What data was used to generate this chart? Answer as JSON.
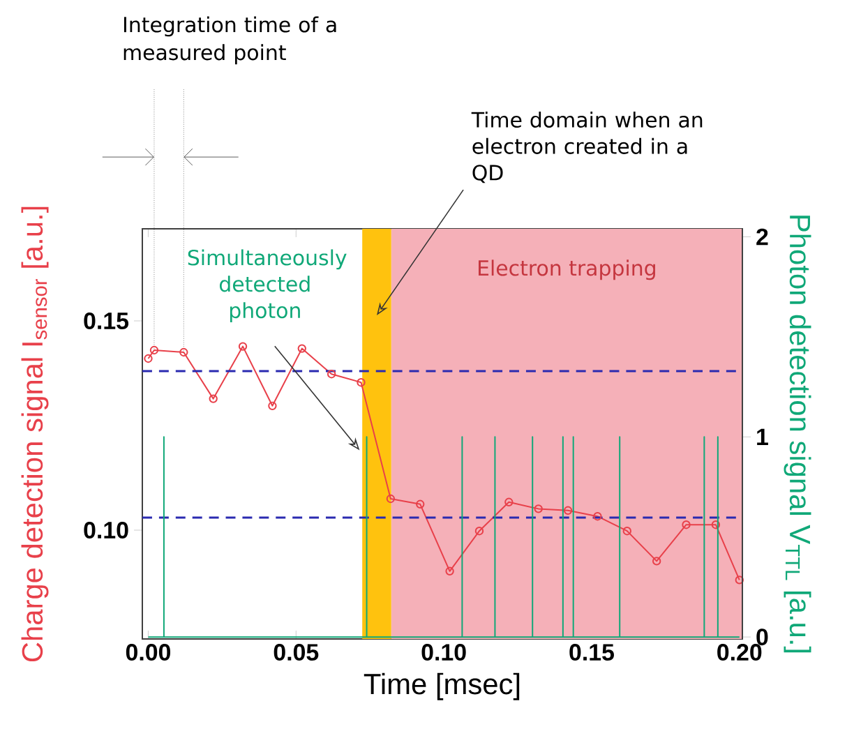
{
  "chart_data": {
    "type": "line",
    "xlabel": "Time [msec]",
    "ylabel": "Charge detection signal I$_{sensor}$ [a.u.]",
    "y2label": "Photon detection signal V$_{TTL}$ [a.u.]",
    "xlim": [
      -0.002,
      0.201
    ],
    "ylim": [
      0.074,
      0.172
    ],
    "y2lim": [
      -0.01,
      2.04
    ],
    "xticks": [
      {
        "value": 0,
        "label": "0.00"
      },
      0.05,
      {
        "value": 0.1,
        "label": "0.10"
      },
      0.15,
      {
        "value": 0.2,
        "label": "0.20"
      }
    ],
    "yticks": [
      {
        "value": 0.1,
        "label": "0.10"
      },
      0.15
    ],
    "y2ticks": [
      0,
      1,
      2
    ],
    "marker": "circle",
    "line_style": "solid",
    "grid": false,
    "series": [
      {
        "color": "#e8404a",
        "x": [
          0.0,
          0.002,
          0.012,
          0.022,
          0.032,
          0.042,
          0.052,
          0.062,
          0.072,
          0.082,
          0.092,
          0.102,
          0.112,
          0.122,
          0.132,
          0.142,
          0.152,
          0.162,
          0.172,
          0.182,
          0.192,
          0.2
        ],
        "values": [
          0.141,
          0.143,
          0.1425,
          0.1314,
          0.1439,
          0.1297,
          0.1434,
          0.1373,
          0.1353,
          0.1075,
          0.1062,
          0.0902,
          0.0998,
          0.1067,
          0.1051,
          0.1047,
          0.1033,
          0.0998,
          0.0926,
          0.1013,
          0.1013,
          0.0881
        ]
      },
      {
        "color": "#10a878",
        "axis": "y2",
        "marker": "none",
        "x": [
          0.0,
          0.0053,
          0.0053,
          0.0053,
          0.0739,
          0.0739,
          0.0739,
          0.1062,
          0.1062,
          0.1062,
          0.1173,
          0.1173,
          0.1173,
          0.13,
          0.13,
          0.13,
          0.1403,
          0.1403,
          0.1403,
          0.1438,
          0.1438,
          0.1438,
          0.1595,
          0.1595,
          0.1595,
          0.1881,
          0.1881,
          0.1881,
          0.1927,
          0.1927,
          0.1927,
          0.2
        ],
        "values": [
          0,
          0,
          1,
          0,
          0,
          1,
          0,
          0,
          1,
          0,
          0,
          1,
          0,
          0,
          1,
          0,
          0,
          1,
          0,
          0,
          1,
          0,
          0,
          1,
          0,
          0,
          1,
          0,
          0,
          1,
          0,
          0
        ]
      }
    ],
    "ref_lines": [
      {
        "axis": "y",
        "value": 0.138,
        "color": "#2a2ab0",
        "line_style": "dashed"
      },
      {
        "axis": "y",
        "value": 0.103,
        "color": "#2a2ab0",
        "line_style": "dashed"
      }
    ],
    "bands": [
      {
        "axis": "x",
        "from": 0.0822,
        "to": 0.201,
        "label": "Electron trapping",
        "color": "#f5b0b8"
      },
      {
        "axis": "x",
        "from": 0.0724,
        "to": 0.0822,
        "color": "#ffc20e"
      }
    ],
    "annotations": [
      "Integration time of a measured point",
      {
        "text": "Simultaneously detected photon",
        "x": 0.0715,
        "y": 0.1191
      },
      "Time domain when an electron created in a QD"
    ]
  }
}
